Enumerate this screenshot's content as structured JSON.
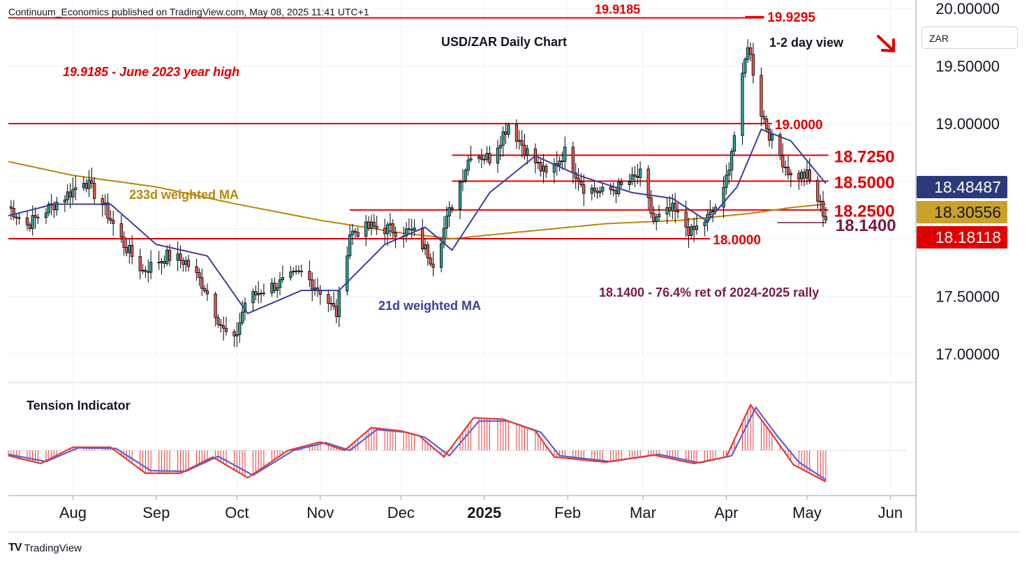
{
  "header": {
    "publisher": "Continuum_Economics published on TradingView.com, May 08, 2025 11:41 UTC+1"
  },
  "currency_selector": "ZAR",
  "brand": {
    "logo": "TV",
    "name": "TradingView"
  },
  "colors": {
    "level_line": "#e00000",
    "up_candle": "#26a69a",
    "down_candle": "#ef5350",
    "ma21": "#3a3f9a",
    "ma233": "#b8860b",
    "retracement": "#7b1a45",
    "tension_red": "#e53935",
    "tension_blue": "#5b5fd6",
    "price_tag_navy": "#2a3a7a",
    "price_tag_gold": "#c9a227",
    "price_tag_red": "#e00000"
  },
  "chart_data": [
    {
      "type": "candlestick",
      "title": "USD/ZAR Daily Chart",
      "view_label": "1-2 day view",
      "view_direction": "down-right arrow",
      "y_ticks": [
        "17.00000",
        "17.50000",
        "18.00000",
        "18.50000",
        "19.00000",
        "19.50000",
        "20.00000"
      ],
      "y_tick_values": [
        17.0,
        17.5,
        18.0,
        18.5,
        19.0,
        19.5,
        20.0
      ],
      "ylim": [
        16.75,
        20.05
      ],
      "x_ticks": [
        "Aug",
        "Sep",
        "Oct",
        "Nov",
        "Dec",
        "2025",
        "Feb",
        "Mar",
        "Apr",
        "May",
        "Jun"
      ],
      "x_tick_dates": [
        "2024-08-01",
        "2024-09-01",
        "2024-10-01",
        "2024-11-01",
        "2024-12-01",
        "2025-01-01",
        "2025-02-01",
        "2025-03-01",
        "2025-04-01",
        "2025-05-01",
        "2025-06-01"
      ],
      "xlim": [
        "2024-07-08",
        "2025-06-10"
      ],
      "horizontal_levels": [
        {
          "value": 19.9185,
          "label": "19.9185 - June 2023 year high",
          "tag": "19.9185",
          "start": "2024-07-08",
          "end": "2025-04-15"
        },
        {
          "value": 19.9295,
          "tag": "19.9295",
          "start": "2025-04-08",
          "end": "2025-04-15"
        },
        {
          "value": 19.0,
          "tag": "19.0000",
          "start": "2024-07-08",
          "end": "2025-04-18"
        },
        {
          "value": 18.725,
          "tag": "18.7250",
          "start": "2024-12-20",
          "end": "2025-05-09"
        },
        {
          "value": 18.5,
          "tag": "18.5000",
          "start": "2024-12-20",
          "end": "2025-05-09"
        },
        {
          "value": 18.25,
          "tag": "18.2500",
          "start": "2024-11-12",
          "end": "2025-05-09"
        },
        {
          "value": 18.14,
          "tag": "18.1400",
          "start": "2025-04-20",
          "end": "2025-05-08"
        },
        {
          "value": 18.0,
          "tag": "18.0000",
          "start": "2024-07-08",
          "end": "2025-03-26"
        }
      ],
      "annotations": {
        "ma233": "233d weighted MA",
        "ma21": "21d weighted MA",
        "retracement": "18.1400 - 76.4% ret of 2024-2025 rally"
      },
      "price_tags": [
        {
          "label": "18.48487",
          "value": 18.48487,
          "series": "21d weighted MA"
        },
        {
          "label": "18.30556",
          "value": 18.30556,
          "series": "233d weighted MA"
        },
        {
          "label": "18.18118",
          "value": 18.18118,
          "series": "USD/ZAR"
        }
      ],
      "anchors": [
        [
          "2024-07-08",
          18.28
        ],
        [
          "2024-07-15",
          18.12
        ],
        [
          "2024-07-22",
          18.25
        ],
        [
          "2024-08-01",
          18.42
        ],
        [
          "2024-08-05",
          18.52
        ],
        [
          "2024-08-12",
          18.3
        ],
        [
          "2024-08-20",
          17.95
        ],
        [
          "2024-08-27",
          17.72
        ],
        [
          "2024-09-05",
          17.85
        ],
        [
          "2024-09-12",
          17.8
        ],
        [
          "2024-09-19",
          17.58
        ],
        [
          "2024-09-26",
          17.2
        ],
        [
          "2024-09-30",
          17.1
        ],
        [
          "2024-10-04",
          17.45
        ],
        [
          "2024-10-10",
          17.55
        ],
        [
          "2024-10-18",
          17.62
        ],
        [
          "2024-10-25",
          17.7
        ],
        [
          "2024-11-01",
          17.55
        ],
        [
          "2024-11-07",
          17.35
        ],
        [
          "2024-11-12",
          18.05
        ],
        [
          "2024-11-20",
          18.1
        ],
        [
          "2024-11-28",
          18.08
        ],
        [
          "2024-12-06",
          18.05
        ],
        [
          "2024-12-13",
          17.8
        ],
        [
          "2024-12-20",
          18.3
        ],
        [
          "2024-12-27",
          18.75
        ],
        [
          "2025-01-03",
          18.7
        ],
        [
          "2025-01-10",
          19.0
        ],
        [
          "2025-01-17",
          18.75
        ],
        [
          "2025-01-24",
          18.55
        ],
        [
          "2025-01-31",
          18.75
        ],
        [
          "2025-02-07",
          18.45
        ],
        [
          "2025-02-14",
          18.4
        ],
        [
          "2025-02-21",
          18.45
        ],
        [
          "2025-02-28",
          18.55
        ],
        [
          "2025-03-05",
          18.15
        ],
        [
          "2025-03-12",
          18.25
        ],
        [
          "2025-03-19",
          18.05
        ],
        [
          "2025-03-26",
          18.2
        ],
        [
          "2025-03-31",
          18.4
        ],
        [
          "2025-04-04",
          18.9
        ],
        [
          "2025-04-09",
          19.7
        ],
        [
          "2025-04-14",
          19.1
        ],
        [
          "2025-04-18",
          18.85
        ],
        [
          "2025-04-25",
          18.55
        ],
        [
          "2025-05-01",
          18.55
        ],
        [
          "2025-05-08",
          18.18
        ]
      ],
      "ma21_anchors": [
        [
          "2024-07-08",
          18.2
        ],
        [
          "2024-07-25",
          18.3
        ],
        [
          "2024-08-15",
          18.3
        ],
        [
          "2024-09-01",
          17.95
        ],
        [
          "2024-09-20",
          17.85
        ],
        [
          "2024-10-05",
          17.35
        ],
        [
          "2024-10-25",
          17.55
        ],
        [
          "2024-11-08",
          17.55
        ],
        [
          "2024-11-25",
          17.95
        ],
        [
          "2024-12-10",
          18.1
        ],
        [
          "2024-12-20",
          17.9
        ],
        [
          "2025-01-03",
          18.4
        ],
        [
          "2025-01-20",
          18.72
        ],
        [
          "2025-02-05",
          18.55
        ],
        [
          "2025-02-25",
          18.4
        ],
        [
          "2025-03-12",
          18.35
        ],
        [
          "2025-03-25",
          18.15
        ],
        [
          "2025-04-05",
          18.45
        ],
        [
          "2025-04-14",
          18.95
        ],
        [
          "2025-04-25",
          18.85
        ],
        [
          "2025-05-08",
          18.48
        ]
      ],
      "ma233_anchors": [
        [
          "2024-07-08",
          18.67
        ],
        [
          "2024-08-01",
          18.55
        ],
        [
          "2024-09-01",
          18.45
        ],
        [
          "2024-10-01",
          18.3
        ],
        [
          "2024-11-01",
          18.16
        ],
        [
          "2024-12-01",
          18.05
        ],
        [
          "2024-12-20",
          18.0
        ],
        [
          "2025-01-15",
          18.06
        ],
        [
          "2025-02-15",
          18.13
        ],
        [
          "2025-03-15",
          18.16
        ],
        [
          "2025-04-10",
          18.22
        ],
        [
          "2025-04-25",
          18.27
        ],
        [
          "2025-05-08",
          18.3
        ]
      ]
    },
    {
      "type": "area",
      "title": "Tension Indicator",
      "baseline_value": 0,
      "ylim": [
        -0.65,
        1.0
      ],
      "indicator_anchors": [
        [
          "2024-07-08",
          -0.08
        ],
        [
          "2024-07-20",
          -0.2
        ],
        [
          "2024-08-01",
          0.05
        ],
        [
          "2024-08-15",
          0.05
        ],
        [
          "2024-08-28",
          -0.35
        ],
        [
          "2024-09-10",
          -0.35
        ],
        [
          "2024-09-22",
          -0.1
        ],
        [
          "2024-10-05",
          -0.42
        ],
        [
          "2024-10-20",
          0.0
        ],
        [
          "2024-11-01",
          0.13
        ],
        [
          "2024-11-10",
          0.0
        ],
        [
          "2024-11-20",
          0.35
        ],
        [
          "2024-12-01",
          0.3
        ],
        [
          "2024-12-08",
          0.22
        ],
        [
          "2024-12-17",
          -0.1
        ],
        [
          "2024-12-28",
          0.5
        ],
        [
          "2025-01-08",
          0.48
        ],
        [
          "2025-01-20",
          0.3
        ],
        [
          "2025-01-27",
          -0.1
        ],
        [
          "2025-02-15",
          -0.18
        ],
        [
          "2025-03-05",
          -0.07
        ],
        [
          "2025-03-20",
          -0.2
        ],
        [
          "2025-04-01",
          -0.1
        ],
        [
          "2025-04-10",
          0.7
        ],
        [
          "2025-04-18",
          0.25
        ],
        [
          "2025-04-26",
          -0.22
        ],
        [
          "2025-05-08",
          -0.48
        ]
      ],
      "signal_anchors": [
        [
          "2024-07-08",
          -0.06
        ],
        [
          "2024-07-22",
          -0.17
        ],
        [
          "2024-08-03",
          0.04
        ],
        [
          "2024-08-17",
          0.03
        ],
        [
          "2024-08-30",
          -0.31
        ],
        [
          "2024-09-12",
          -0.32
        ],
        [
          "2024-09-24",
          -0.09
        ],
        [
          "2024-10-07",
          -0.38
        ],
        [
          "2024-10-22",
          0.0
        ],
        [
          "2024-11-03",
          0.12
        ],
        [
          "2024-11-12",
          0.0
        ],
        [
          "2024-11-22",
          0.32
        ],
        [
          "2024-12-03",
          0.28
        ],
        [
          "2024-12-10",
          0.2
        ],
        [
          "2024-12-19",
          -0.08
        ],
        [
          "2024-12-30",
          0.45
        ],
        [
          "2025-01-10",
          0.45
        ],
        [
          "2025-01-22",
          0.28
        ],
        [
          "2025-01-29",
          -0.08
        ],
        [
          "2025-02-17",
          -0.17
        ],
        [
          "2025-03-07",
          -0.06
        ],
        [
          "2025-03-22",
          -0.19
        ],
        [
          "2025-04-03",
          -0.08
        ],
        [
          "2025-04-12",
          0.66
        ],
        [
          "2025-04-20",
          0.22
        ],
        [
          "2025-04-28",
          -0.18
        ],
        [
          "2025-05-08",
          -0.45
        ]
      ]
    }
  ]
}
